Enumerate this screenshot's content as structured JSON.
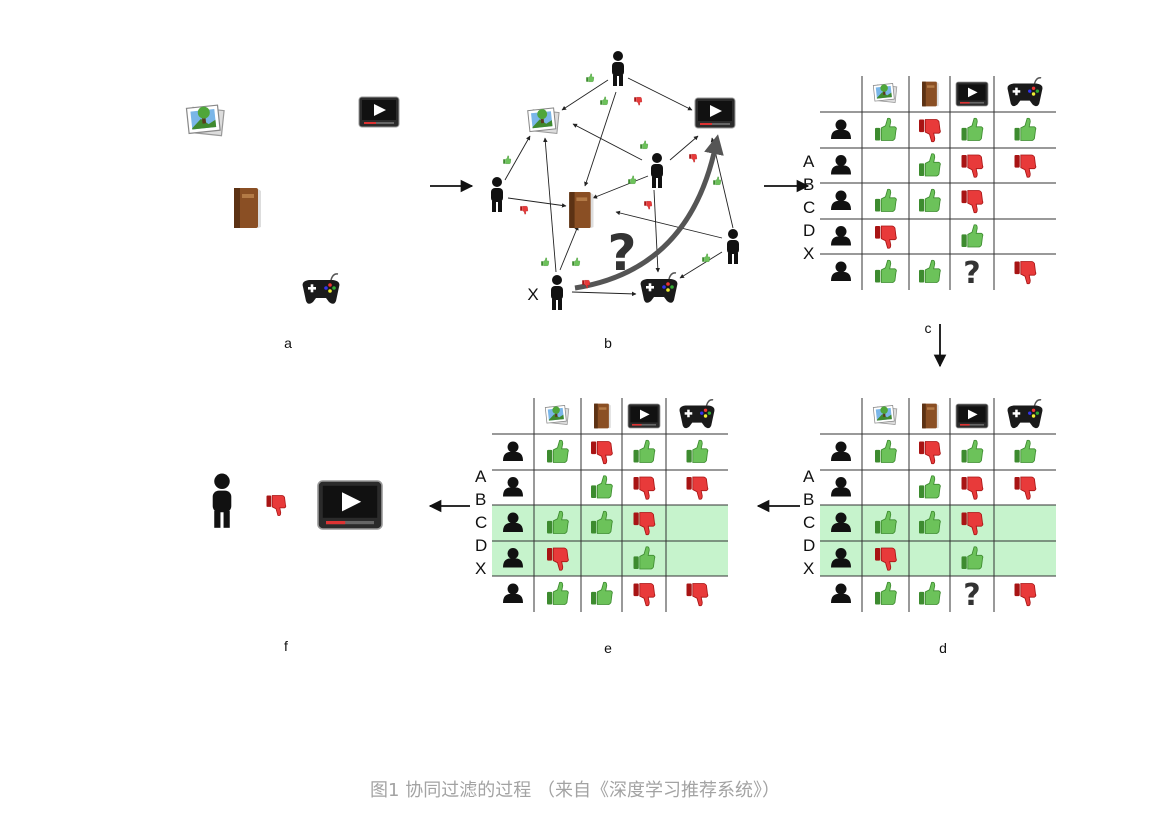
{
  "panel_labels": {
    "a": "a",
    "b": "b",
    "c": "c",
    "d": "d",
    "e": "e",
    "f": "f"
  },
  "row_letters": [
    "A",
    "B",
    "C",
    "D",
    "X"
  ],
  "x_label": "X",
  "question_mark": "?",
  "caption": "图1 协同过滤的过程 （来自《深度学习推荐系统》）",
  "icons": {
    "image": "image-icon",
    "book": "book-icon",
    "video": "video-icon",
    "gamepad": "gamepad-icon",
    "person": "person-icon",
    "like": "thumbs-up-icon",
    "dislike": "thumbs-down-icon"
  },
  "colors": {
    "like": "#5fb34e",
    "dislike": "#e02b2b",
    "highlight": "#c6f3cc",
    "grid": "#333333",
    "arrow": "#111111",
    "caption": "#a3a3a3"
  },
  "matrix_c": [
    [
      "up",
      "down",
      "up",
      "up"
    ],
    [
      "",
      "up",
      "down",
      "down"
    ],
    [
      "up",
      "up",
      "down",
      ""
    ],
    [
      "down",
      "",
      "up",
      ""
    ],
    [
      "up",
      "up",
      "?",
      "down"
    ]
  ],
  "matrix_d": [
    [
      "up",
      "down",
      "up",
      "up"
    ],
    [
      "",
      "up",
      "down",
      "down"
    ],
    [
      "up",
      "up",
      "down",
      ""
    ],
    [
      "down",
      "",
      "up",
      ""
    ],
    [
      "up",
      "up",
      "?",
      "down"
    ]
  ],
  "matrix_e": [
    [
      "up",
      "down",
      "up",
      "up"
    ],
    [
      "",
      "up",
      "down",
      "down"
    ],
    [
      "up",
      "up",
      "down",
      ""
    ],
    [
      "down",
      "",
      "up",
      ""
    ],
    [
      "up",
      "up",
      "down",
      "down"
    ]
  ],
  "highlighted_rows": [
    1,
    2,
    4
  ],
  "result": "dislike"
}
